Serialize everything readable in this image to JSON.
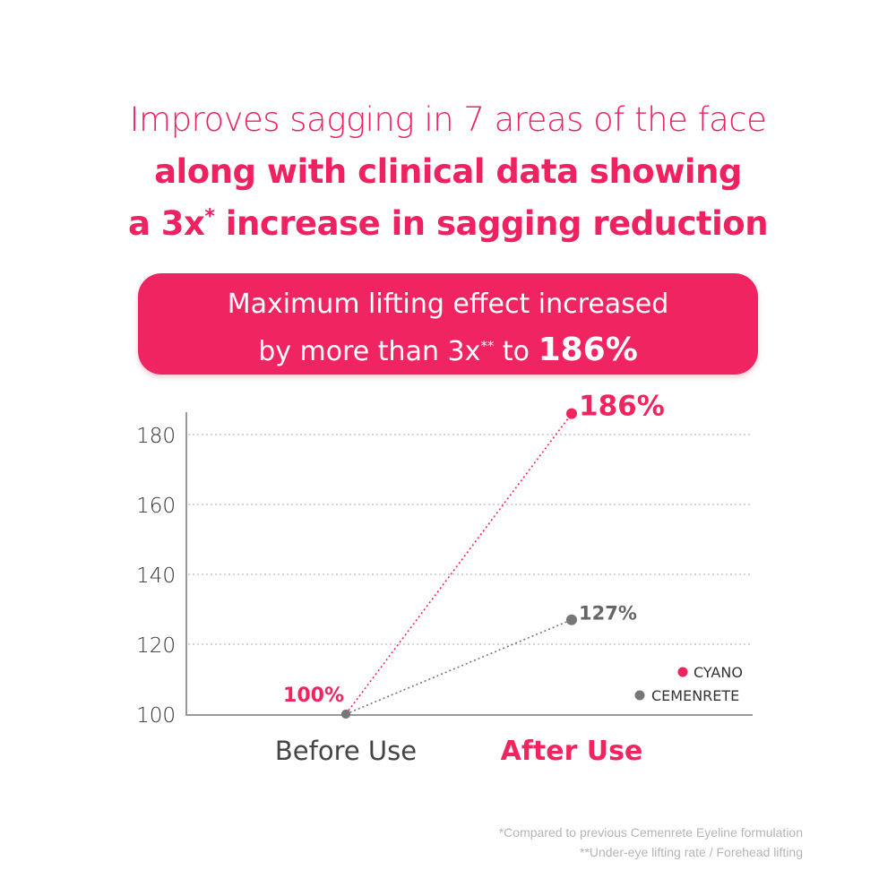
{
  "headline": {
    "line1": "Improves sagging in 7 areas of the face",
    "line2": "along with clinical data showing",
    "line3_pre": "a 3x",
    "line3_sup": "*",
    "line3_post": " increase in sagging reduction"
  },
  "banner": {
    "line1": "Maximum lifting effect increased",
    "line2_pre": "by more than 3x",
    "line2_sup": "**",
    "line2_mid": " to ",
    "line2_value": "186%"
  },
  "chart_data": {
    "type": "line",
    "categories": [
      "Before Use",
      "After Use"
    ],
    "yticks": [
      100,
      120,
      140,
      160,
      180
    ],
    "ylim": [
      100,
      186
    ],
    "grid": true,
    "legend_position": "bottom-right",
    "series": [
      {
        "name": "CYANO",
        "values": [
          100,
          186
        ],
        "labels": [
          "100%",
          "186%"
        ],
        "color": "#f0245f"
      },
      {
        "name": "CEMENRETE",
        "values": [
          100,
          127
        ],
        "labels": [
          "",
          "127%"
        ],
        "color": "#777777"
      }
    ]
  },
  "footnotes": [
    "*Compared to previous Cemenrete Eyeline formulation",
    "**Under-eye lifting rate / Forehead lifting"
  ]
}
